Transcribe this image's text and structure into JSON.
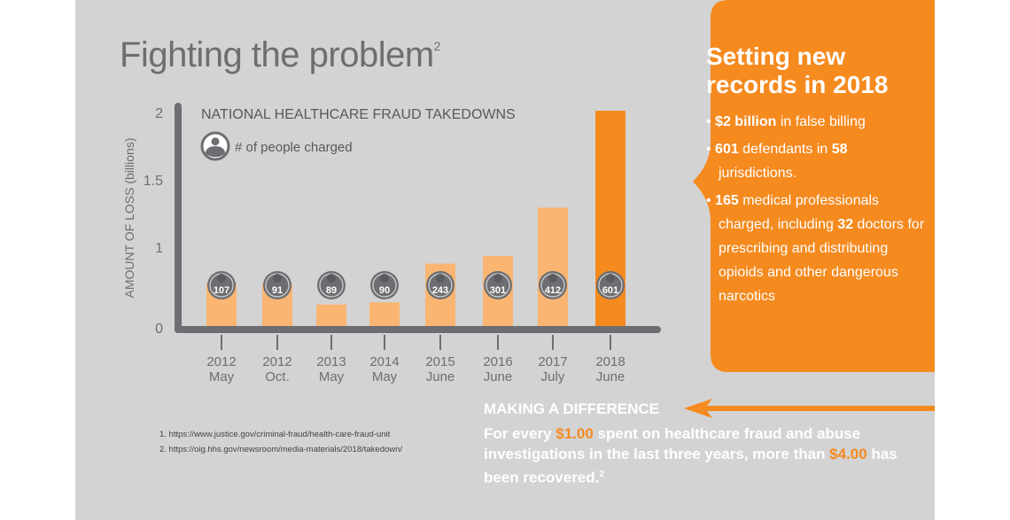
{
  "title": "Fighting the problem",
  "title_sup": "2",
  "colors": {
    "background": "#d3d3d4",
    "accent": "#f58a1f",
    "bar_light": "#f9b571",
    "axis": "#6d6e71",
    "text": "#6d6e71"
  },
  "chart_data": {
    "type": "bar",
    "title": "NATIONAL HEALTHCARE FRAUD TAKEDOWNS",
    "legend": "# of people charged",
    "ylabel": "AMOUNT OF LOSS (billions)",
    "xlabel": "",
    "ylim": [
      0,
      2
    ],
    "yticks": [
      "0",
      "1",
      "1.5",
      "2"
    ],
    "yticks_values": [
      0,
      1,
      1.5,
      2
    ],
    "categories": [
      {
        "year": "2012",
        "month": "May"
      },
      {
        "year": "2012",
        "month": "Oct."
      },
      {
        "year": "2013",
        "month": "May"
      },
      {
        "year": "2014",
        "month": "May"
      },
      {
        "year": "2015",
        "month": "June"
      },
      {
        "year": "2016",
        "month": "June"
      },
      {
        "year": "2017",
        "month": "July"
      },
      {
        "year": "2018",
        "month": "June"
      }
    ],
    "values": [
      0.4,
      0.4,
      0.2,
      0.22,
      0.58,
      0.65,
      1.1,
      2.0
    ],
    "people_charged": [
      "107",
      "91",
      "89",
      "90",
      "243",
      "301",
      "412",
      "601"
    ],
    "highlight_index": 7
  },
  "callout": {
    "title": "Setting new records in 2018",
    "bullets": [
      [
        {
          "b": "$2 billion"
        },
        {
          "t": " in false billing"
        }
      ],
      [
        {
          "b": "601"
        },
        {
          "t": " defendants in "
        },
        {
          "b": "58"
        },
        {
          "t": " jurisdictions."
        }
      ],
      [
        {
          "b": "165"
        },
        {
          "t": " medical professionals charged, including "
        },
        {
          "b": "32"
        },
        {
          "t": " doctors for prescribing and distributing opioids and other dangerous narcotics"
        }
      ]
    ]
  },
  "references": [
    "1. https://www.justice.gov/criminal-fraud/health-care-fraud-unit",
    "2. https://oig.hhs.gov/newsroom/media-materials/2018/takedown/"
  ],
  "difference": {
    "heading": "MAKING A DIFFERENCE",
    "p1": "For every ",
    "amount1": "$1.00",
    "p2": " spent on healthcare fraud and abuse investigations in the last three years, more than ",
    "amount2": "$4.00",
    "p3": " has been recovered.",
    "sup": "2"
  }
}
